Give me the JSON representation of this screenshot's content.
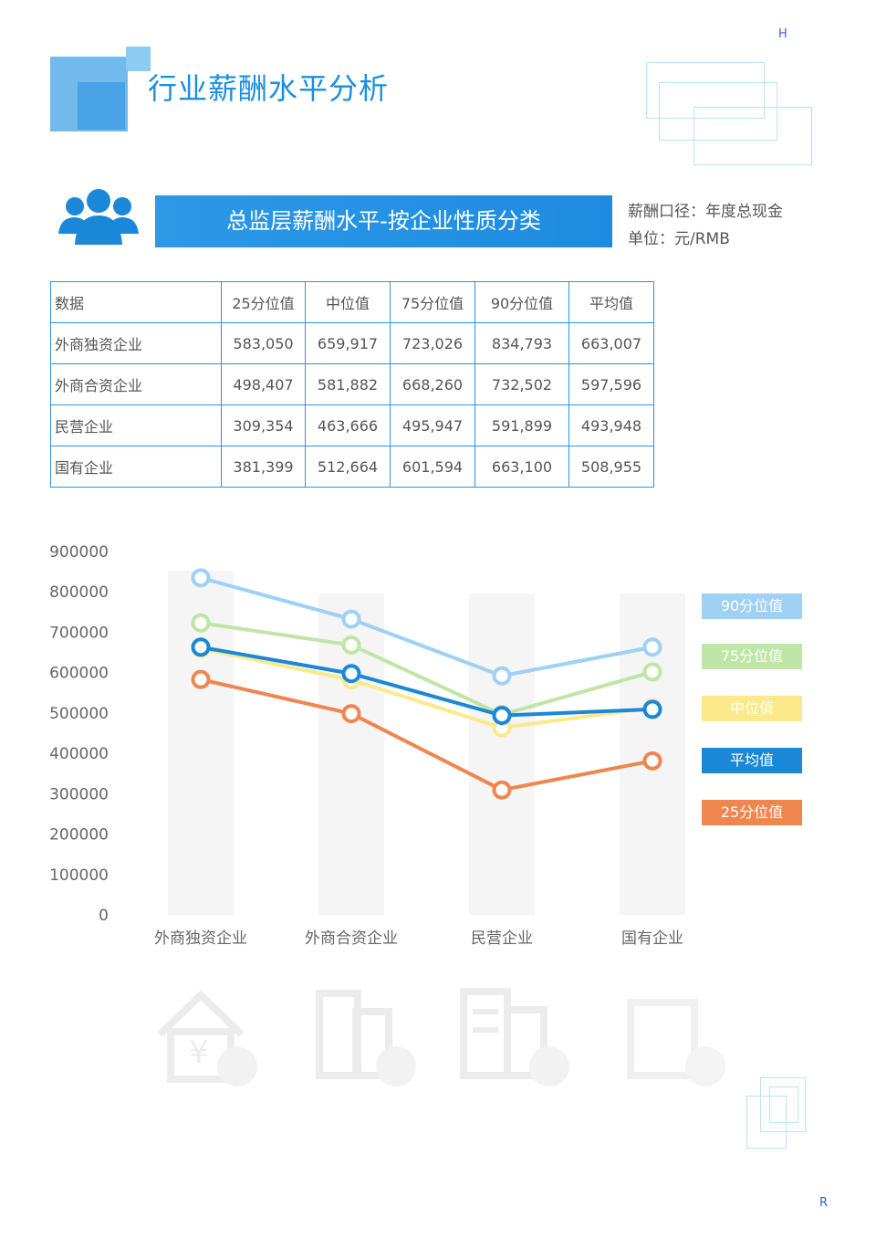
{
  "header": {
    "title": "行业薪酬水平分析",
    "corner_top": "H",
    "corner_bottom": "R"
  },
  "section": {
    "banner_title": "总监层薪酬水平-按企业性质分类",
    "basis": "薪酬口径：年度总现金",
    "unit": "单位：元/RMB"
  },
  "table": {
    "headers": [
      "数据",
      "25分位值",
      "中位值",
      "75分位值",
      "90分位值",
      "平均值"
    ],
    "rows": [
      [
        "外商独资企业",
        "583,050",
        "659,917",
        "723,026",
        "834,793",
        "663,007"
      ],
      [
        "外商合资企业",
        "498,407",
        "581,882",
        "668,260",
        "732,502",
        "597,596"
      ],
      [
        "民营企业",
        "309,354",
        "463,666",
        "495,947",
        "591,899",
        "493,948"
      ],
      [
        "国有企业",
        "381,399",
        "512,664",
        "601,594",
        "663,100",
        "508,955"
      ]
    ]
  },
  "chart_data": {
    "type": "line",
    "categories": [
      "外商独资企业",
      "外商合资企业",
      "民营企业",
      "国有企业"
    ],
    "ylim": [
      0,
      900000
    ],
    "yticks": [
      "900000",
      "800000",
      "700000",
      "600000",
      "500000",
      "400000",
      "300000",
      "200000",
      "100000",
      "0"
    ],
    "legend_position": "right",
    "series": [
      {
        "name": "90分位值",
        "color": "#9fd0f5",
        "values": [
          834793,
          732502,
          591899,
          663100
        ]
      },
      {
        "name": "75分位值",
        "color": "#bfe6a6",
        "values": [
          723026,
          668260,
          495947,
          601594
        ]
      },
      {
        "name": "中位值",
        "color": "#fbe98c",
        "values": [
          659917,
          581882,
          463666,
          512664
        ]
      },
      {
        "name": "平均值",
        "color": "#1b87d9",
        "values": [
          663007,
          597596,
          493948,
          508955
        ]
      },
      {
        "name": "25分位值",
        "color": "#f0864f",
        "values": [
          583050,
          498407,
          309354,
          381399
        ]
      }
    ]
  }
}
